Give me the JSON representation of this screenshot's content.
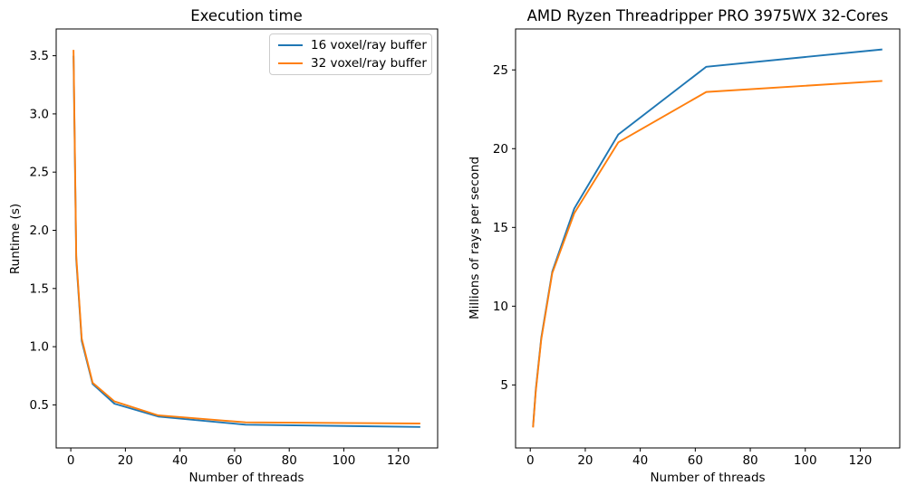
{
  "figure": {
    "background_color": "#ffffff",
    "text_color": "#000000",
    "spine_color": "#000000",
    "legend_border_color": "#cccccc"
  },
  "chart_data": [
    {
      "type": "line",
      "title": "Execution time",
      "xlabel": "Number of threads",
      "ylabel": "Runtime (s)",
      "x": [
        1,
        2,
        4,
        8,
        16,
        32,
        64,
        128
      ],
      "series": [
        {
          "name": "16 voxel/ray buffer",
          "color": "#1f77b4",
          "values": [
            3.5,
            1.75,
            1.05,
            0.68,
            0.51,
            0.4,
            0.33,
            0.31
          ]
        },
        {
          "name": "32 voxel/ray buffer",
          "color": "#ff7f0e",
          "values": [
            3.55,
            1.78,
            1.07,
            0.69,
            0.53,
            0.41,
            0.35,
            0.34
          ]
        }
      ],
      "xlim": [
        -5.35,
        134.35
      ],
      "ylim": [
        0.13,
        3.73
      ],
      "xticks": {
        "values": [
          0,
          20,
          40,
          60,
          80,
          100,
          120
        ],
        "labels": [
          "0",
          "20",
          "40",
          "60",
          "80",
          "100",
          "120"
        ]
      },
      "yticks": {
        "values": [
          0.5,
          1.0,
          1.5,
          2.0,
          2.5,
          3.0,
          3.5
        ],
        "labels": [
          "0.5",
          "1.0",
          "1.5",
          "2.0",
          "2.5",
          "3.0",
          "3.5"
        ]
      },
      "legend": {
        "visible": true,
        "position": "upper right"
      },
      "grid": false
    },
    {
      "type": "line",
      "title": "AMD Ryzen Threadripper PRO 3975WX 32-Cores",
      "xlabel": "Number of threads",
      "ylabel": "Millions of rays per second",
      "x": [
        1,
        2,
        4,
        8,
        16,
        32,
        64,
        128
      ],
      "series": [
        {
          "name": "16 voxel/ray buffer",
          "color": "#1f77b4",
          "values": [
            2.35,
            4.7,
            8.0,
            12.2,
            16.2,
            20.9,
            25.2,
            26.3
          ]
        },
        {
          "name": "32 voxel/ray buffer",
          "color": "#ff7f0e",
          "values": [
            2.3,
            4.6,
            7.9,
            12.1,
            15.9,
            20.4,
            23.6,
            24.3
          ]
        }
      ],
      "xlim": [
        -5.35,
        134.35
      ],
      "ylim": [
        1.0,
        27.6
      ],
      "xticks": {
        "values": [
          0,
          20,
          40,
          60,
          80,
          100,
          120
        ],
        "labels": [
          "0",
          "20",
          "40",
          "60",
          "80",
          "100",
          "120"
        ]
      },
      "yticks": {
        "values": [
          5,
          10,
          15,
          20,
          25
        ],
        "labels": [
          "5",
          "10",
          "15",
          "20",
          "25"
        ]
      },
      "legend": {
        "visible": false,
        "position": null
      },
      "grid": false
    }
  ]
}
